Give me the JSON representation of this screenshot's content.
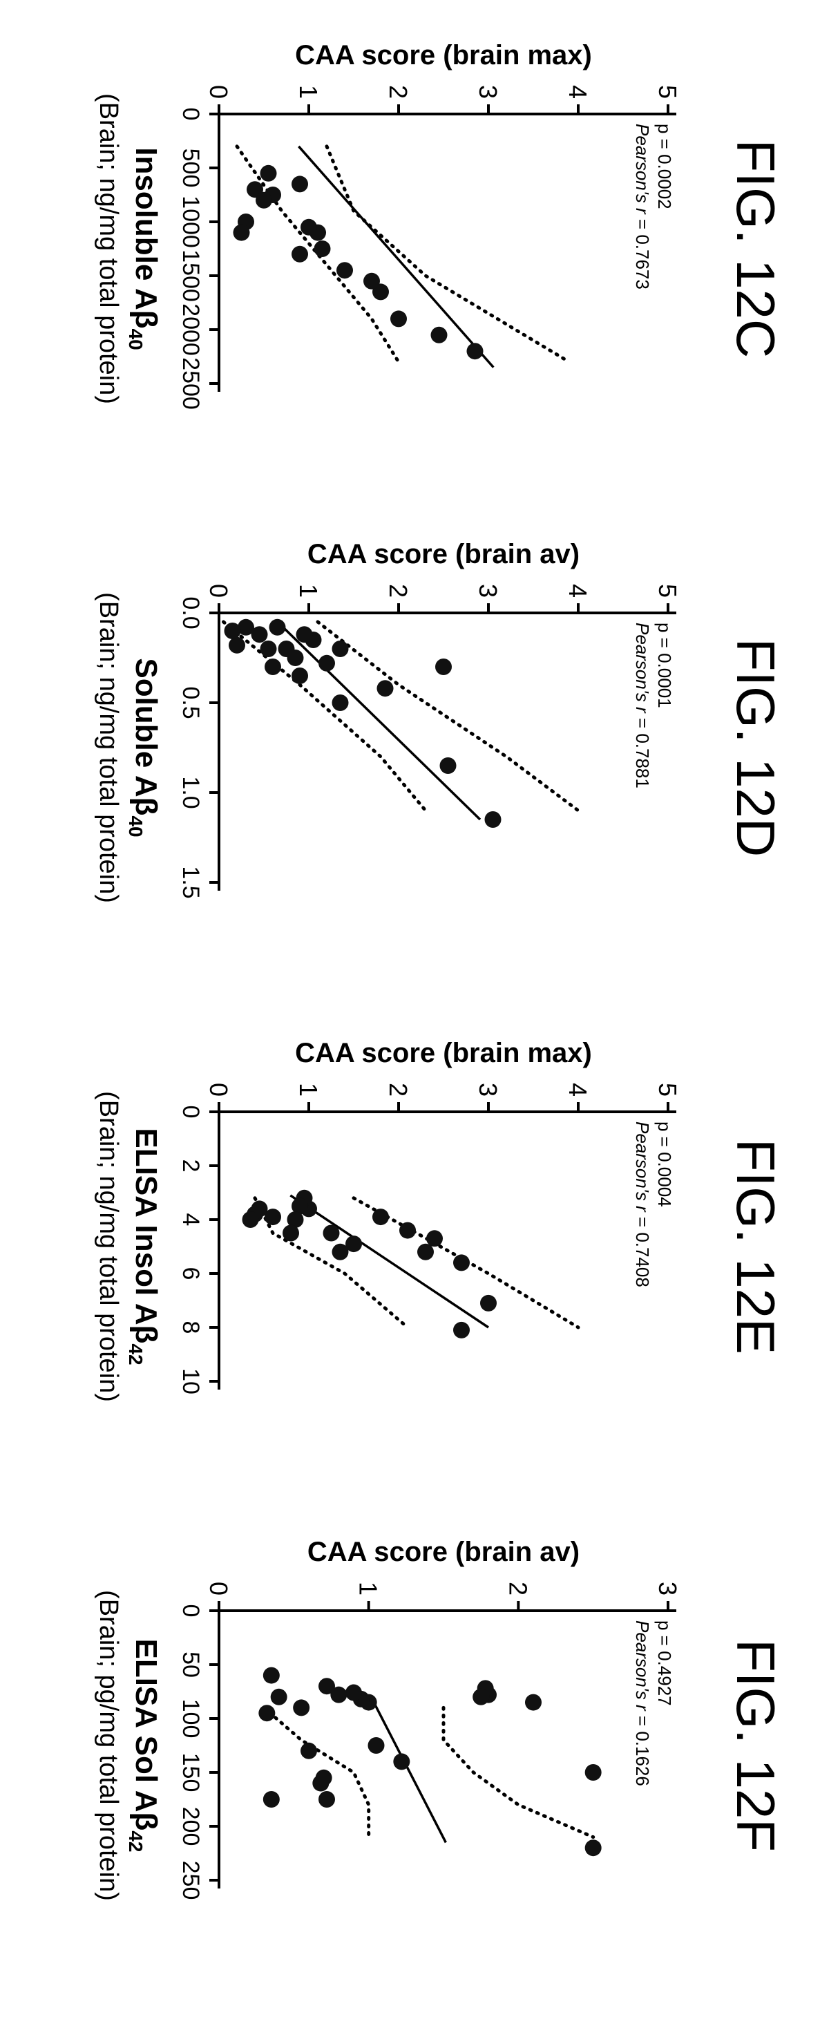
{
  "charts": [
    {
      "fig_label": "FIG. 12C",
      "type": "scatter",
      "ylabel": "CAA score (brain max)",
      "xlabel_main": "Insoluble",
      "xlabel_sym": "Aβ",
      "xlabel_sub": "40",
      "xlabel_units": "(Brain; ng/mg total protein)",
      "stat_p": "p = 0.0002",
      "stat_r_name": "Pearson's r",
      "stat_r_val": " = 0.7673",
      "xlim": [
        0,
        2500
      ],
      "ylim": [
        0,
        5
      ],
      "xticks": [
        "0",
        "500",
        "1000",
        "1500",
        "2000",
        "2500"
      ],
      "yticks": [
        "0",
        "1",
        "2",
        "3",
        "4",
        "5"
      ],
      "points": [
        [
          2200,
          2.85
        ],
        [
          2050,
          2.45
        ],
        [
          1900,
          2.0
        ],
        [
          1650,
          1.8
        ],
        [
          1550,
          1.7
        ],
        [
          1450,
          1.4
        ],
        [
          1250,
          1.15
        ],
        [
          1100,
          1.1
        ],
        [
          1300,
          0.9
        ],
        [
          1050,
          1.0
        ],
        [
          650,
          0.9
        ],
        [
          750,
          0.6
        ],
        [
          550,
          0.55
        ],
        [
          700,
          0.4
        ],
        [
          800,
          0.5
        ],
        [
          1000,
          0.3
        ],
        [
          1100,
          0.25
        ]
      ],
      "fit": {
        "slope": 0.001058,
        "intercept": 0.57,
        "x_range": [
          300,
          2350
        ]
      },
      "ci_upper": [
        [
          300,
          1.2
        ],
        [
          900,
          1.5
        ],
        [
          1500,
          2.3
        ],
        [
          2000,
          3.3
        ],
        [
          2300,
          3.9
        ]
      ],
      "ci_lower": [
        [
          300,
          0.2
        ],
        [
          900,
          0.7
        ],
        [
          1400,
          1.2
        ],
        [
          1900,
          1.7
        ],
        [
          2300,
          2.0
        ]
      ]
    },
    {
      "fig_label": "FIG. 12D",
      "type": "scatter",
      "ylabel": "CAA score (brain av)",
      "xlabel_main": "Soluble",
      "xlabel_sym": "Aβ",
      "xlabel_sub": "40",
      "xlabel_units": "(Brain; ng/mg total protein)",
      "stat_p": "p = 0.0001",
      "stat_r_name": "Pearson's r",
      "stat_r_val": " = 0.7881",
      "xlim": [
        0.0,
        1.5
      ],
      "ylim": [
        0,
        5
      ],
      "xticks": [
        "0.0",
        "0.5",
        "1.0",
        "1.5"
      ],
      "yticks": [
        "0",
        "1",
        "2",
        "3",
        "4",
        "5"
      ],
      "points": [
        [
          1.15,
          3.05
        ],
        [
          0.85,
          2.55
        ],
        [
          0.3,
          2.5
        ],
        [
          0.42,
          1.85
        ],
        [
          0.5,
          1.35
        ],
        [
          0.2,
          1.35
        ],
        [
          0.28,
          1.2
        ],
        [
          0.15,
          1.05
        ],
        [
          0.12,
          0.95
        ],
        [
          0.35,
          0.9
        ],
        [
          0.25,
          0.85
        ],
        [
          0.2,
          0.75
        ],
        [
          0.08,
          0.65
        ],
        [
          0.3,
          0.6
        ],
        [
          0.2,
          0.55
        ],
        [
          0.12,
          0.45
        ],
        [
          0.08,
          0.3
        ],
        [
          0.18,
          0.2
        ],
        [
          0.1,
          0.15
        ]
      ],
      "fit": {
        "slope": 2.05,
        "intercept": 0.55,
        "x_range": [
          0.05,
          1.15
        ]
      },
      "ci_upper": [
        [
          0.05,
          1.1
        ],
        [
          0.4,
          2.0
        ],
        [
          0.8,
          3.2
        ],
        [
          1.1,
          4.0
        ]
      ],
      "ci_lower": [
        [
          0.05,
          0.05
        ],
        [
          0.4,
          0.9
        ],
        [
          0.8,
          1.8
        ],
        [
          1.1,
          2.3
        ]
      ]
    },
    {
      "fig_label": "FIG. 12E",
      "type": "scatter",
      "ylabel": "CAA score (brain max)",
      "xlabel_main": "ELISA Insol",
      "xlabel_sym": "Aβ",
      "xlabel_sub": "42",
      "xlabel_units": "(Brain; ng/mg total protein)",
      "stat_p": "p = 0.0004",
      "stat_r_name": "Pearson's r",
      "stat_r_val": " = 0.7408",
      "xlim": [
        0,
        10
      ],
      "ylim": [
        0,
        5
      ],
      "xticks": [
        "0",
        "2",
        "4",
        "6",
        "8",
        "10"
      ],
      "yticks": [
        "0",
        "1",
        "2",
        "3",
        "4",
        "5"
      ],
      "points": [
        [
          8.1,
          2.7
        ],
        [
          7.1,
          3.0
        ],
        [
          5.6,
          2.7
        ],
        [
          5.2,
          2.3
        ],
        [
          4.7,
          2.4
        ],
        [
          4.4,
          2.1
        ],
        [
          3.9,
          1.8
        ],
        [
          4.9,
          1.5
        ],
        [
          5.2,
          1.35
        ],
        [
          4.5,
          1.25
        ],
        [
          3.6,
          1.0
        ],
        [
          3.2,
          0.95
        ],
        [
          3.5,
          0.9
        ],
        [
          4.0,
          0.85
        ],
        [
          4.5,
          0.8
        ],
        [
          3.9,
          0.6
        ],
        [
          3.6,
          0.45
        ],
        [
          3.8,
          0.4
        ],
        [
          4.0,
          0.35
        ]
      ],
      "fit": {
        "slope": 0.45,
        "intercept": -0.6,
        "x_range": [
          3.1,
          8.0
        ]
      },
      "ci_upper": [
        [
          3.2,
          1.5
        ],
        [
          4.5,
          2.2
        ],
        [
          6.0,
          3.0
        ],
        [
          8.0,
          4.0
        ]
      ],
      "ci_lower": [
        [
          3.2,
          0.4
        ],
        [
          4.5,
          0.6
        ],
        [
          6.0,
          1.4
        ],
        [
          8.0,
          2.1
        ]
      ]
    },
    {
      "fig_label": "FIG. 12F",
      "type": "scatter",
      "ylabel": "CAA score (brain av)",
      "xlabel_main": "ELISA Sol",
      "xlabel_sym": "Aβ",
      "xlabel_sub": "42",
      "xlabel_units": "(Brain; pg/mg total protein)",
      "stat_p": "p = 0.4927",
      "stat_r_name": "Pearson's r",
      "stat_r_val": " = 0.1626",
      "xlim": [
        0,
        250
      ],
      "ylim": [
        0,
        3
      ],
      "xticks": [
        "0",
        "50",
        "100",
        "150",
        "200",
        "250"
      ],
      "yticks": [
        "0",
        "1",
        "2",
        "3"
      ],
      "points": [
        [
          220,
          2.5
        ],
        [
          150,
          2.5
        ],
        [
          85,
          2.1
        ],
        [
          78,
          1.8
        ],
        [
          72,
          1.78
        ],
        [
          80,
          1.75
        ],
        [
          140,
          1.22
        ],
        [
          125,
          1.05
        ],
        [
          85,
          1.0
        ],
        [
          82,
          0.95
        ],
        [
          76,
          0.9
        ],
        [
          78,
          0.8
        ],
        [
          70,
          0.72
        ],
        [
          175,
          0.72
        ],
        [
          160,
          0.68
        ],
        [
          155,
          0.7
        ],
        [
          130,
          0.6
        ],
        [
          90,
          0.55
        ],
        [
          80,
          0.4
        ],
        [
          60,
          0.35
        ],
        [
          95,
          0.32
        ],
        [
          175,
          0.35
        ]
      ],
      "fit": {
        "slope": 0.0037,
        "intercept": 0.72,
        "x_range": [
          80,
          215
        ]
      },
      "ci_upper": [
        [
          90,
          1.5
        ],
        [
          120,
          1.5
        ],
        [
          150,
          1.7
        ],
        [
          180,
          2.0
        ],
        [
          210,
          2.5
        ]
      ],
      "ci_lower": [
        [
          90,
          0.3
        ],
        [
          120,
          0.55
        ],
        [
          150,
          0.9
        ],
        [
          180,
          1.0
        ],
        [
          210,
          1.0
        ]
      ]
    }
  ]
}
